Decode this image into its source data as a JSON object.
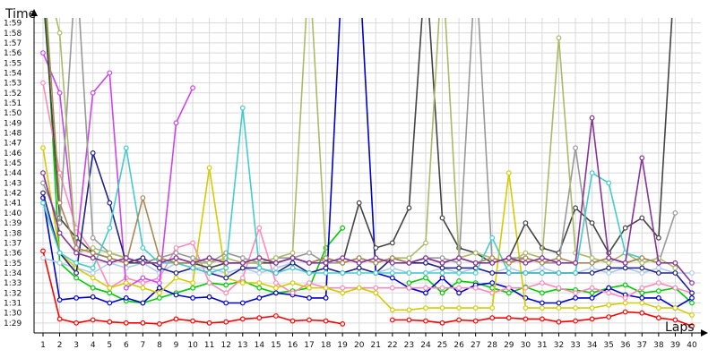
{
  "chart_data": {
    "type": "line",
    "ylabel": "Time",
    "xlabel": "Laps",
    "x": [
      1,
      2,
      3,
      4,
      5,
      6,
      7,
      8,
      9,
      10,
      11,
      12,
      13,
      14,
      15,
      16,
      17,
      18,
      19,
      20,
      21,
      22,
      23,
      24,
      25,
      26,
      27,
      28,
      29,
      30,
      31,
      32,
      33,
      34,
      35,
      36,
      37,
      38,
      39,
      40
    ],
    "x_tick_labels": [
      "1",
      "2",
      "3",
      "4",
      "5",
      "6",
      "7",
      "8",
      "9",
      "10",
      "11",
      "12",
      "13",
      "14",
      "15",
      "16",
      "17",
      "18",
      "19",
      "20",
      "21",
      "22",
      "23",
      "24",
      "25",
      "26",
      "27",
      "28",
      "29",
      "30",
      "31",
      "32",
      "33",
      "34",
      "35",
      "36",
      "37",
      "38",
      "39",
      "40"
    ],
    "xlim": [
      1,
      40
    ],
    "y_unit": "seconds",
    "ylim": [
      88,
      119.5
    ],
    "y_ticks": [
      89,
      90,
      91,
      92,
      93,
      94,
      95,
      96,
      97,
      98,
      99,
      100,
      101,
      102,
      103,
      104,
      105,
      106,
      107,
      108,
      109,
      110,
      111,
      112,
      113,
      114,
      115,
      116,
      117,
      118,
      119
    ],
    "y_tick_labels": [
      "1:29",
      "1:30",
      "1:31",
      "1:32",
      "1:33",
      "1:34",
      "1:35",
      "1:36",
      "1:37",
      "1:38",
      "1:39",
      "1:40",
      "1:41",
      "1:42",
      "1:43",
      "1:44",
      "1:45",
      "1:46",
      "1:47",
      "1:48",
      "1:49",
      "1:50",
      "1:51",
      "1:52",
      "1:53",
      "1:54",
      "1:55",
      "1:56",
      "1:57",
      "1:58",
      "1:59"
    ],
    "grid": true,
    "legend": "none",
    "series": [
      {
        "color": "#ff0000",
        "values": [
          96.2,
          89.4,
          89.0,
          89.3,
          89.1,
          89.0,
          89.0,
          88.9,
          89.4,
          89.2,
          89.0,
          89.1,
          89.4,
          89.5,
          89.7,
          89.2,
          89.3,
          89.2,
          88.9,
          null,
          null,
          89.3,
          89.3,
          89.2,
          89.0,
          89.3,
          89.2,
          89.5,
          89.5,
          89.4,
          89.4,
          89.1,
          89.2,
          89.4,
          89.6,
          90.1,
          90.0,
          89.5,
          89.3,
          88.7
        ]
      },
      {
        "color": "#00cc00",
        "values": [
          125,
          95.0,
          93.5,
          92.5,
          92.0,
          91.2,
          91.0,
          91.5,
          92.0,
          92.5,
          93.0,
          92.8,
          93.2,
          92.5,
          92.0,
          92.2,
          92.5,
          96.5,
          98.5,
          null,
          null,
          null,
          93.0,
          93.5,
          92.0,
          93.2,
          93.0,
          92.5,
          92.0,
          92.6,
          92.0,
          92.4,
          92.3,
          92.0,
          92.5,
          92.8,
          92.0,
          92.2,
          92.5,
          91.0
        ]
      },
      {
        "color": "#0000cc",
        "values": [
          101.5,
          91.3,
          91.5,
          91.6,
          91.0,
          91.5,
          91.0,
          92.5,
          91.8,
          91.5,
          91.6,
          91.0,
          91.0,
          91.5,
          92.0,
          91.8,
          91.5,
          91.5,
          125,
          125,
          94.0,
          93.5,
          92.5,
          92.0,
          93.5,
          92.0,
          92.8,
          93.0,
          92.5,
          91.5,
          91.0,
          91.0,
          91.5,
          91.5,
          92.5,
          91.8,
          91.5,
          91.5,
          90.5,
          91.5
        ]
      },
      {
        "color": "#ff88bb",
        "values": [
          113.0,
          104.0,
          98.5,
          96.0,
          92.5,
          93.5,
          93.0,
          93.5,
          96.5,
          97.0,
          93.0,
          92.0,
          93.5,
          98.5,
          93.0,
          92.0,
          93.0,
          92.5,
          92.5,
          92.5,
          92.5,
          92.5,
          92.5,
          92.5,
          92.5,
          92.5,
          92.5,
          92.0,
          92.5,
          92.5,
          93.0,
          92.5,
          92.0,
          92.5,
          92.0,
          91.5,
          92.5,
          93.0,
          92.5,
          92.0
        ]
      },
      {
        "color": "#aaccee",
        "values": [
          95.5,
          95.0,
          94.5,
          94.0,
          95.0,
          94.5,
          95.0,
          94.0,
          95.0,
          94.5,
          94.5,
          94.0,
          94.5,
          94.0,
          94.5,
          95.0,
          94.0,
          94.5,
          94.0,
          94.5,
          94.0,
          94.5,
          94.0,
          94.0,
          94.5,
          94.0,
          94.5,
          94.0,
          94.5,
          94.0,
          94.5,
          94.0,
          94.0,
          94.5,
          94.0,
          94.5,
          94.0,
          94.5,
          94.0,
          94.0
        ]
      },
      {
        "color": "#cc44ee",
        "values": [
          116.0,
          112.0,
          96.5,
          112.0,
          114.0,
          92.5,
          93.5,
          93.0,
          109.0,
          112.5,
          null,
          null,
          null,
          null,
          null,
          null,
          null,
          null,
          null,
          null,
          null,
          null,
          null,
          null,
          null,
          null,
          null,
          null,
          null,
          null,
          null,
          null,
          null,
          null,
          null,
          null,
          null,
          null,
          null,
          null
        ]
      },
      {
        "color": "#d4cc00",
        "values": [
          106.5,
          96.0,
          94.5,
          93.5,
          92.5,
          93.0,
          92.5,
          92.0,
          93.5,
          93.0,
          104.5,
          93.5,
          93.0,
          93.0,
          92.5,
          93.0,
          92.5,
          92.5,
          92.0,
          92.5,
          92.0,
          90.3,
          90.3,
          90.5,
          90.5,
          90.5,
          90.5,
          90.5,
          104.0,
          90.5,
          90.5,
          90.5,
          90.5,
          90.5,
          90.8,
          91.0,
          91.0,
          90.5,
          90.5,
          89.8
        ]
      },
      {
        "color": "#222288",
        "values": [
          102.0,
          96.0,
          94.0,
          106.0,
          101.0,
          95.0,
          95.5,
          94.5,
          94.0,
          94.5,
          94.0,
          93.5,
          94.5,
          94.5,
          94.0,
          95.0,
          94.0,
          94.5,
          94.0,
          94.5,
          94.0,
          95.5,
          95.0,
          95.0,
          94.5,
          94.5,
          94.5,
          94.0,
          94.0,
          94.0,
          94.0,
          94.0,
          94.0,
          94.0,
          94.5,
          94.5,
          94.5,
          94.0,
          94.0,
          92.0
        ]
      },
      {
        "color": "#444444",
        "values": [
          122.0,
          99.5,
          97.5,
          96.0,
          95.5,
          95.0,
          95.0,
          95.5,
          95.0,
          95.0,
          94.5,
          95.0,
          95.0,
          95.0,
          95.0,
          95.5,
          95.0,
          95.5,
          95.0,
          101.0,
          96.5,
          97.0,
          100.5,
          125,
          99.5,
          96.5,
          96.0,
          95.0,
          95.5,
          99.0,
          96.5,
          96.0,
          100.5,
          99.0,
          96.0,
          98.5,
          99.5,
          97.5,
          125,
          null
        ]
      },
      {
        "color": "#999999",
        "values": [
          103.0,
          99.0,
          125,
          97.5,
          96.0,
          95.5,
          95.0,
          95.5,
          96.0,
          95.5,
          95.0,
          96.0,
          95.5,
          95.0,
          95.5,
          95.5,
          96.0,
          95.0,
          95.0,
          95.5,
          95.0,
          95.5,
          95.0,
          95.5,
          95.5,
          95.0,
          125,
          95.0,
          95.5,
          95.5,
          95.0,
          95.0,
          106.5,
          95.0,
          95.5,
          95.0,
          95.5,
          95.0,
          100.0,
          null
        ]
      },
      {
        "color": "#aabb66",
        "values": [
          125,
          118.0,
          96.0,
          96.5,
          96.0,
          95.5,
          95.0,
          95.0,
          95.5,
          95.0,
          95.0,
          95.5,
          95.0,
          95.0,
          95.5,
          96.0,
          125,
          95.5,
          95.0,
          95.5,
          95.0,
          95.5,
          95.5,
          97.0,
          125,
          95.5,
          96.0,
          95.5,
          95.0,
          96.0,
          95.5,
          117.5,
          96.0,
          95.5,
          95.0,
          96.0,
          95.0,
          95.5,
          94.5,
          null
        ]
      },
      {
        "color": "#44cccc",
        "values": [
          101.0,
          96.0,
          95.0,
          94.5,
          98.5,
          106.5,
          96.5,
          95.0,
          95.0,
          94.5,
          94.0,
          94.5,
          110.5,
          94.5,
          94.0,
          94.5,
          94.0,
          94.0,
          94.0,
          94.0,
          94.0,
          94.0,
          94.0,
          94.0,
          94.0,
          94.0,
          94.0,
          97.5,
          94.0,
          94.0,
          94.0,
          94.0,
          94.0,
          104.0,
          103.0,
          96.0,
          95.5,
          95.0,
          null,
          null
        ]
      },
      {
        "color": "#aa8855",
        "values": [
          125,
          101.0,
          96.5,
          96.0,
          95.5,
          95.0,
          101.5,
          95.5,
          95.0,
          95.0,
          95.5,
          95.0,
          95.0,
          95.5,
          95.0,
          95.5,
          95.0,
          95.5,
          95.0,
          95.5,
          95.0,
          95.5,
          95.0,
          95.5,
          95.0,
          95.5,
          95.0,
          95.5,
          95.0,
          95.5,
          95.0,
          95.5,
          95.0,
          95.0,
          95.5,
          95.0,
          95.5,
          95.0,
          null,
          null
        ]
      },
      {
        "color": "#883399",
        "values": [
          104.0,
          98.0,
          96.0,
          95.5,
          95.0,
          95.5,
          95.0,
          95.0,
          95.5,
          95.0,
          95.5,
          95.0,
          95.0,
          95.5,
          95.0,
          95.5,
          95.0,
          95.0,
          95.5,
          95.0,
          95.5,
          95.0,
          95.0,
          95.5,
          95.0,
          95.5,
          95.0,
          95.0,
          95.5,
          95.0,
          95.5,
          95.0,
          95.0,
          109.5,
          95.5,
          95.0,
          105.5,
          95.0,
          95.0,
          93.0
        ]
      }
    ]
  }
}
